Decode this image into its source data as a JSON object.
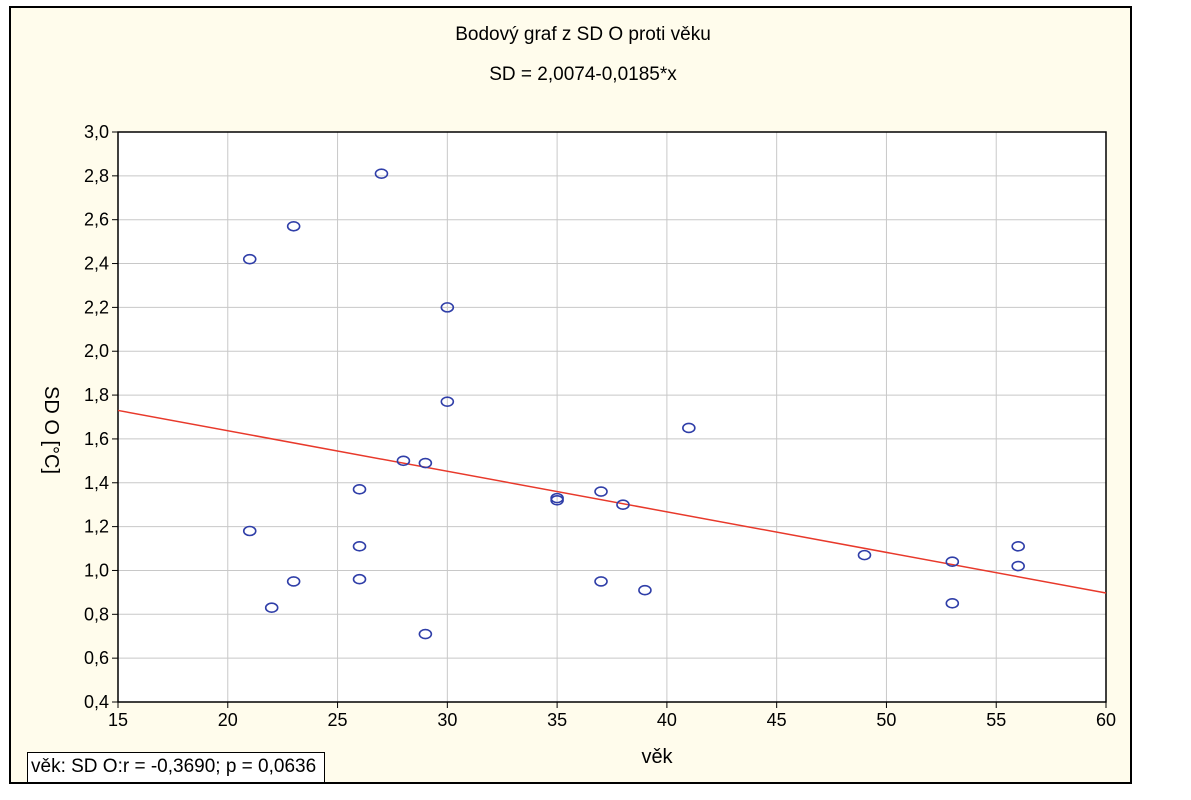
{
  "chart_data": {
    "type": "scatter",
    "title": "Bodový graf z SD O proti věku",
    "subtitle": "SD = 2,0074-0,0185*x",
    "xlabel": "věk",
    "ylabel": "SD O [°C]",
    "xlim": [
      15,
      60
    ],
    "ylim": [
      0.4,
      3.0
    ],
    "x_ticks": [
      "15",
      "20",
      "25",
      "30",
      "35",
      "40",
      "45",
      "50",
      "55",
      "60"
    ],
    "y_ticks": [
      "0,4",
      "0,6",
      "0,8",
      "1,0",
      "1,2",
      "1,4",
      "1,6",
      "1,8",
      "2,0",
      "2,2",
      "2,4",
      "2,6",
      "2,8",
      "3,0"
    ],
    "grid": true,
    "points": [
      {
        "x": 21,
        "y": 2.42
      },
      {
        "x": 21,
        "y": 1.18
      },
      {
        "x": 22,
        "y": 0.83
      },
      {
        "x": 23,
        "y": 2.57
      },
      {
        "x": 23,
        "y": 0.95
      },
      {
        "x": 26,
        "y": 1.37
      },
      {
        "x": 26,
        "y": 1.11
      },
      {
        "x": 26,
        "y": 0.96
      },
      {
        "x": 27,
        "y": 2.81
      },
      {
        "x": 28,
        "y": 1.5
      },
      {
        "x": 29,
        "y": 1.49
      },
      {
        "x": 29,
        "y": 0.71
      },
      {
        "x": 30,
        "y": 2.2
      },
      {
        "x": 30,
        "y": 1.77
      },
      {
        "x": 35,
        "y": 1.33
      },
      {
        "x": 35,
        "y": 1.32
      },
      {
        "x": 37,
        "y": 1.36
      },
      {
        "x": 37,
        "y": 0.95
      },
      {
        "x": 38,
        "y": 1.3
      },
      {
        "x": 39,
        "y": 0.91
      },
      {
        "x": 41,
        "y": 1.65
      },
      {
        "x": 49,
        "y": 1.07
      },
      {
        "x": 53,
        "y": 1.04
      },
      {
        "x": 53,
        "y": 0.85
      },
      {
        "x": 56,
        "y": 1.11
      },
      {
        "x": 56,
        "y": 1.02
      }
    ],
    "fit_line": {
      "intercept": 2.0074,
      "slope": -0.0185
    },
    "annotation": "věk: SD O:r = -0,3690; p = 0,0636",
    "colors": {
      "points": "#2f3ea8",
      "fit": "#e8392b",
      "grid": "#c8c8c8",
      "background": "#fffcec"
    }
  }
}
